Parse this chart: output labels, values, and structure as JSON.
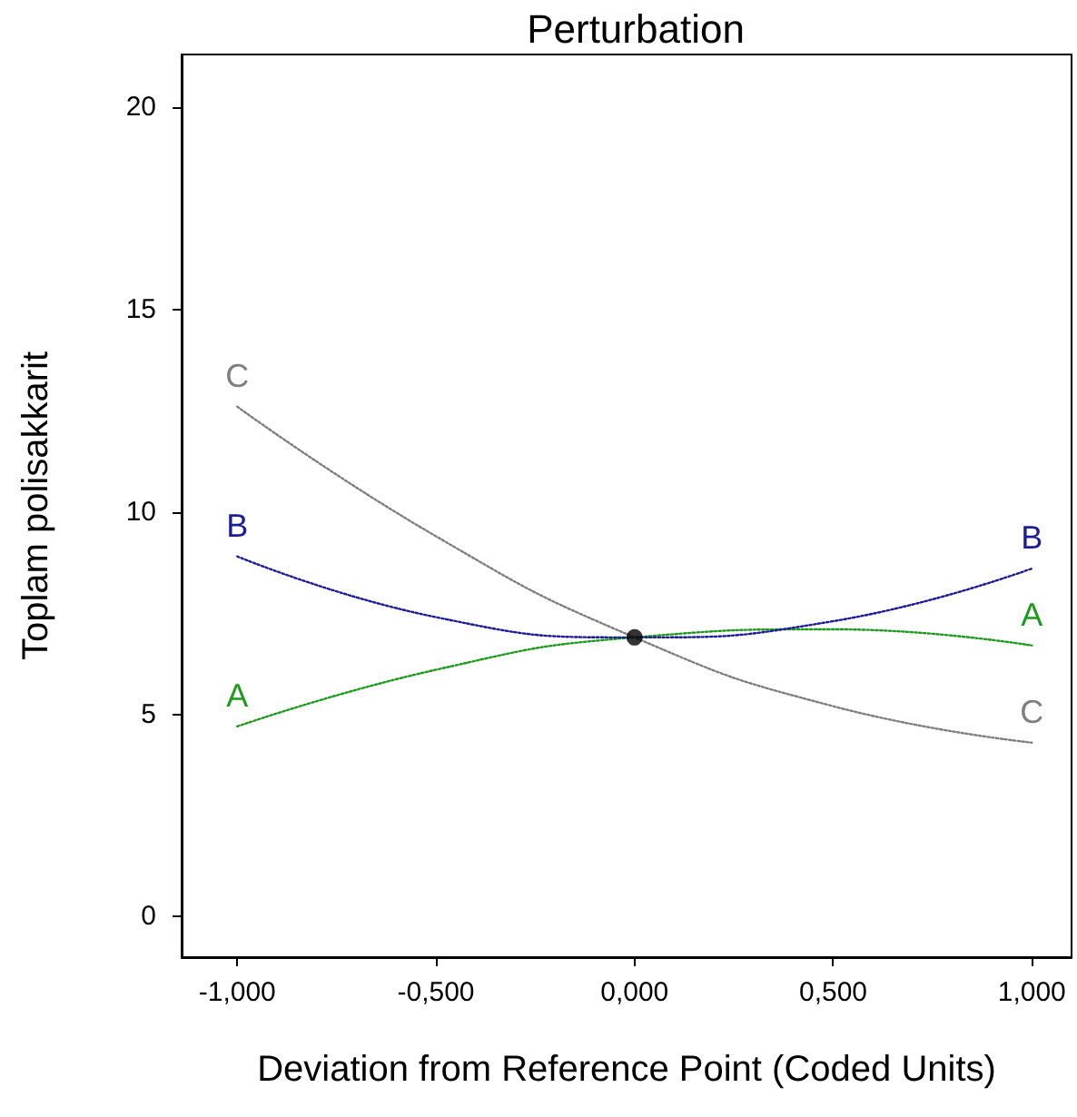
{
  "chart_data": {
    "type": "line",
    "title": "Perturbation",
    "xlabel": "Deviation from Reference Point (Coded Units)",
    "ylabel": "Toplam polisakkarit",
    "xlim": [
      -1.14,
      1.1
    ],
    "xticks": [
      {
        "value": -1,
        "label": "-1,000"
      },
      {
        "value": -0.5,
        "label": "-0,500"
      },
      {
        "value": 0,
        "label": "0,000"
      },
      {
        "value": 0.5,
        "label": "0,500"
      },
      {
        "value": 1,
        "label": "1,000"
      }
    ],
    "ylim": [
      -1,
      21.3
    ],
    "yticks": [
      0,
      5,
      10,
      15,
      20
    ],
    "grid": false,
    "legend": false,
    "marker": "none",
    "line_style": "dotted",
    "series": [
      {
        "name": "A",
        "color": "#1f9a1f",
        "x": [
          -1,
          -0.5,
          0,
          0.5,
          1
        ],
        "values": [
          4.7,
          6.1,
          6.9,
          7.1,
          6.7
        ]
      },
      {
        "name": "B",
        "color": "#1c1c96",
        "x": [
          -1,
          -0.5,
          0,
          0.5,
          1
        ],
        "values": [
          8.9,
          7.4,
          6.9,
          7.3,
          8.6
        ]
      },
      {
        "name": "C",
        "color": "#7f7f7f",
        "x": [
          -1,
          -0.5,
          0,
          0.5,
          1
        ],
        "values": [
          12.6,
          9.4,
          6.9,
          5.2,
          4.3
        ]
      },
      {
        "type": "scatter",
        "color": "#000000",
        "marker": "circle",
        "x": [
          0
        ],
        "values": [
          6.9
        ]
      }
    ]
  }
}
